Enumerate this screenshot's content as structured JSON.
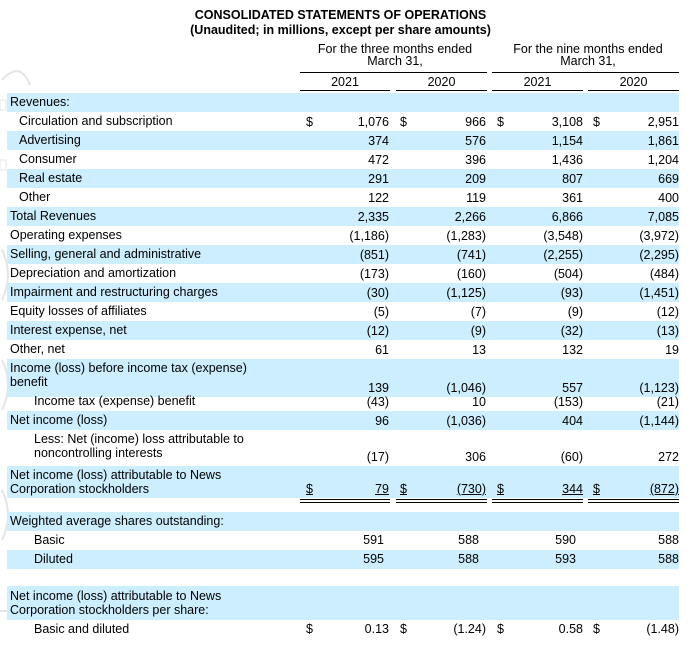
{
  "header": {
    "title": "CONSOLIDATED STATEMENTS OF OPERATIONS",
    "subtitle": "(Unaudited; in millions, except per share amounts)",
    "group1_line1": "For the three months ended",
    "group1_line2": "March 31,",
    "group2_line1": "For the nine months ended",
    "group2_line2": "March 31,",
    "years": [
      "2021",
      "2020",
      "2021",
      "2020"
    ]
  },
  "currency_symbol": "$",
  "colors": {
    "stripe": "#cceeff",
    "text": "#000000"
  },
  "rows": [
    {
      "label": "Revenues:",
      "values": [
        "",
        "",
        "",
        ""
      ]
    },
    {
      "label": "Circulation and subscription",
      "values": [
        "1,076",
        "966",
        "3,108",
        "2,951"
      ]
    },
    {
      "label": "Advertising",
      "values": [
        "374",
        "576",
        "1,154",
        "1,861"
      ]
    },
    {
      "label": "Consumer",
      "values": [
        "472",
        "396",
        "1,436",
        "1,204"
      ]
    },
    {
      "label": "Real estate",
      "values": [
        "291",
        "209",
        "807",
        "669"
      ]
    },
    {
      "label": "Other",
      "values": [
        "122",
        "119",
        "361",
        "400"
      ]
    },
    {
      "label": "Total Revenues",
      "values": [
        "2,335",
        "2,266",
        "6,866",
        "7,085"
      ]
    },
    {
      "label": "Operating expenses",
      "values": [
        "(1,186)",
        "(1,283)",
        "(3,548)",
        "(3,972)"
      ]
    },
    {
      "label": "Selling, general and administrative",
      "values": [
        "(851)",
        "(741)",
        "(2,255)",
        "(2,295)"
      ]
    },
    {
      "label": "Depreciation and amortization",
      "values": [
        "(173)",
        "(160)",
        "(504)",
        "(484)"
      ]
    },
    {
      "label": "Impairment and restructuring charges",
      "values": [
        "(30)",
        "(1,125)",
        "(93)",
        "(1,451)"
      ]
    },
    {
      "label": "Equity losses of affiliates",
      "values": [
        "(5)",
        "(7)",
        "(9)",
        "(12)"
      ]
    },
    {
      "label": "Interest expense, net",
      "values": [
        "(12)",
        "(9)",
        "(32)",
        "(13)"
      ]
    },
    {
      "label": "Other, net",
      "values": [
        "61",
        "13",
        "132",
        "19"
      ]
    },
    {
      "label_line1": "Income (loss) before income tax (expense)",
      "label_line2": "benefit",
      "values": [
        "139",
        "(1,046)",
        "557",
        "(1,123)"
      ]
    },
    {
      "label": "Income tax (expense) benefit",
      "values": [
        "(43)",
        "10",
        "(153)",
        "(21)"
      ]
    },
    {
      "label": "Net income (loss)",
      "values": [
        "96",
        "(1,036)",
        "404",
        "(1,144)"
      ]
    },
    {
      "label_line1": "Less: Net (income) loss attributable to",
      "label_line2": "noncontrolling interests",
      "values": [
        "(17)",
        "306",
        "(60)",
        "272"
      ]
    },
    {
      "label_line1": "Net income (loss) attributable to News",
      "label_line2": "Corporation stockholders",
      "values": [
        "79",
        "(730)",
        "344",
        "(872)"
      ]
    }
  ],
  "shares": {
    "heading": "Weighted average shares outstanding:",
    "rows": [
      {
        "label": "Basic",
        "values": [
          "591",
          "588",
          "590",
          "588"
        ]
      },
      {
        "label": "Diluted",
        "values": [
          "595",
          "588",
          "593",
          "588"
        ]
      }
    ]
  },
  "per_share": {
    "heading_line1": "Net income (loss) attributable to News",
    "heading_line2": "Corporation stockholders per share:",
    "rows": [
      {
        "label": "Basic and diluted",
        "values": [
          "0.13",
          "(1.24)",
          "0.58",
          "(1.48)"
        ]
      }
    ]
  }
}
